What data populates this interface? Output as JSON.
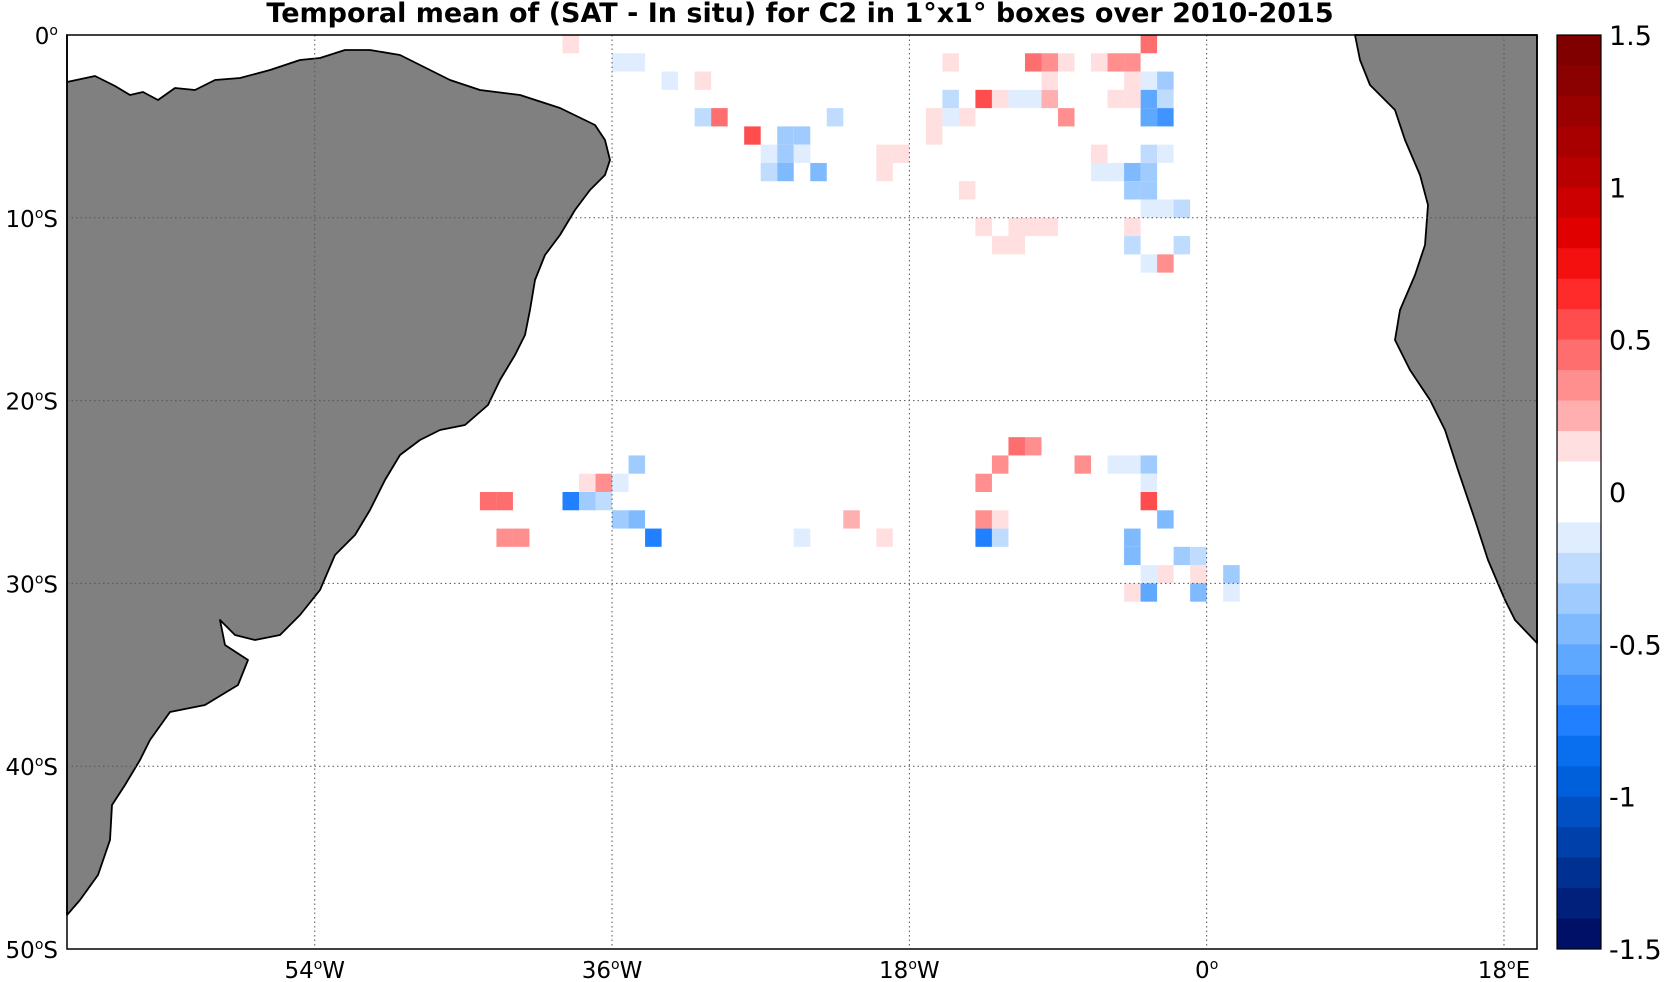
{
  "title": "Temporal mean of (SAT - In situ) for C2 in 1°x1° boxes over 2010-2015",
  "map": {
    "lon_range": [
      -69,
      20
    ],
    "lat_range": [
      -50,
      0
    ],
    "land_color": "#808080",
    "ocean_color": "#ffffff",
    "grid_style": "dotted",
    "lat_ticks": [
      {
        "value": 0,
        "num": "0",
        "suffix": ""
      },
      {
        "value": -10,
        "num": "10",
        "suffix": "S"
      },
      {
        "value": -20,
        "num": "20",
        "suffix": "S"
      },
      {
        "value": -30,
        "num": "30",
        "suffix": "S"
      },
      {
        "value": -40,
        "num": "40",
        "suffix": "S"
      },
      {
        "value": -50,
        "num": "50",
        "suffix": "S"
      }
    ],
    "lon_ticks": [
      {
        "value": -54,
        "num": "54",
        "suffix": "W"
      },
      {
        "value": -36,
        "num": "36",
        "suffix": "W"
      },
      {
        "value": -18,
        "num": "18",
        "suffix": "W"
      },
      {
        "value": 0,
        "num": "0",
        "suffix": ""
      },
      {
        "value": 18,
        "num": "18",
        "suffix": "E"
      }
    ],
    "degree_symbol": "o"
  },
  "colorbar": {
    "min": -1.5,
    "max": 1.5,
    "step": 0.1,
    "tick_labels": [
      "1.5",
      "1",
      "0.5",
      "0",
      "-0.5",
      "-1",
      "-1.5"
    ],
    "tick_values": [
      1.5,
      1,
      0.5,
      0,
      -0.5,
      -1,
      -1.5
    ],
    "colors_top_to_bottom": [
      "#800000",
      "#8b0000",
      "#990000",
      "#a80000",
      "#b80000",
      "#cc0000",
      "#e00000",
      "#f51010",
      "#ff2a2a",
      "#ff4d4d",
      "#ff6e6e",
      "#ff8f8f",
      "#ffafaf",
      "#ffdfdf",
      "#ffffff",
      "#ffffff",
      "#dfedff",
      "#bfdcff",
      "#9fcbff",
      "#7fbaff",
      "#5fa8ff",
      "#3f94ff",
      "#2080ff",
      "#0a6fef",
      "#0060dc",
      "#0050c4",
      "#0040aa",
      "#003092",
      "#00207c",
      "#001066"
    ]
  },
  "chart_data": {
    "type": "heatmap",
    "title": "Temporal mean of (SAT - In situ) for C2 in 1°x1° boxes over 2010-2015",
    "xlabel": "",
    "ylabel": "",
    "value_range": [
      -1.5,
      1.5
    ],
    "cell_size_deg": 1,
    "cells": [
      {
        "lon": -38.5,
        "lat": -0.5,
        "v": 0.1
      },
      {
        "lon": -35.5,
        "lat": -1.5,
        "v": -0.1
      },
      {
        "lon": -34.5,
        "lat": -1.5,
        "v": -0.1
      },
      {
        "lon": -32.5,
        "lat": -2.5,
        "v": -0.1
      },
      {
        "lon": -30.5,
        "lat": -2.5,
        "v": 0.15
      },
      {
        "lon": -30.5,
        "lat": -4.5,
        "v": -0.25
      },
      {
        "lon": -29.5,
        "lat": -4.5,
        "v": 0.5
      },
      {
        "lon": -27.5,
        "lat": -5.5,
        "v": 0.55
      },
      {
        "lon": -25.5,
        "lat": -5.5,
        "v": -0.3
      },
      {
        "lon": -24.5,
        "lat": -5.5,
        "v": -0.3
      },
      {
        "lon": -22.5,
        "lat": -4.5,
        "v": -0.2
      },
      {
        "lon": -26.5,
        "lat": -6.5,
        "v": -0.1
      },
      {
        "lon": -25.5,
        "lat": -6.5,
        "v": -0.35
      },
      {
        "lon": -24.5,
        "lat": -6.5,
        "v": -0.15
      },
      {
        "lon": -26.5,
        "lat": -7.5,
        "v": -0.25
      },
      {
        "lon": -25.5,
        "lat": -7.5,
        "v": -0.4
      },
      {
        "lon": -23.5,
        "lat": -7.5,
        "v": -0.45
      },
      {
        "lon": -19.5,
        "lat": -6.5,
        "v": 0.1
      },
      {
        "lon": -18.5,
        "lat": -6.5,
        "v": 0.1
      },
      {
        "lon": -19.5,
        "lat": -7.5,
        "v": 0.2
      },
      {
        "lon": -16.5,
        "lat": -5.5,
        "v": 0.1
      },
      {
        "lon": -15.5,
        "lat": -3.5,
        "v": -0.2
      },
      {
        "lon": -15.5,
        "lat": -4.5,
        "v": -0.1
      },
      {
        "lon": -16.5,
        "lat": -4.5,
        "v": 0.1
      },
      {
        "lon": -14.5,
        "lat": -4.5,
        "v": 0.1
      },
      {
        "lon": -15.5,
        "lat": -1.5,
        "v": 0.15
      },
      {
        "lon": -14.5,
        "lat": -8.5,
        "v": 0.2
      },
      {
        "lon": -13.5,
        "lat": -3.5,
        "v": 0.6
      },
      {
        "lon": -12.5,
        "lat": -3.5,
        "v": 0.1
      },
      {
        "lon": -11.5,
        "lat": -3.5,
        "v": -0.1
      },
      {
        "lon": -9.5,
        "lat": -1.5,
        "v": 0.3
      },
      {
        "lon": -10.5,
        "lat": -3.5,
        "v": -0.1
      },
      {
        "lon": -9.5,
        "lat": -3.5,
        "v": 0.25
      },
      {
        "lon": -9.5,
        "lat": -2.5,
        "v": 0.2
      },
      {
        "lon": -10.5,
        "lat": -1.5,
        "v": 0.5
      },
      {
        "lon": -8.5,
        "lat": -1.5,
        "v": 0.15
      },
      {
        "lon": -8.5,
        "lat": -4.5,
        "v": 0.3
      },
      {
        "lon": -6.5,
        "lat": -1.5,
        "v": 0.15
      },
      {
        "lon": -5.5,
        "lat": -1.5,
        "v": 0.4
      },
      {
        "lon": -4.5,
        "lat": -1.5,
        "v": 0.35
      },
      {
        "lon": -4.5,
        "lat": -2.5,
        "v": 0.1
      },
      {
        "lon": -3.5,
        "lat": -0.5,
        "v": 0.45
      },
      {
        "lon": -3.5,
        "lat": -2.5,
        "v": -0.1
      },
      {
        "lon": -2.5,
        "lat": -2.5,
        "v": -0.3
      },
      {
        "lon": -3.5,
        "lat": -3.5,
        "v": -0.5
      },
      {
        "lon": -2.5,
        "lat": -3.5,
        "v": -0.25
      },
      {
        "lon": -3.5,
        "lat": -4.5,
        "v": -0.55
      },
      {
        "lon": -2.5,
        "lat": -4.5,
        "v": -0.65
      },
      {
        "lon": -5.5,
        "lat": -3.5,
        "v": 0.15
      },
      {
        "lon": -4.5,
        "lat": -3.5,
        "v": 0.1
      },
      {
        "lon": -3.5,
        "lat": -6.5,
        "v": -0.2
      },
      {
        "lon": -2.5,
        "lat": -6.5,
        "v": -0.1
      },
      {
        "lon": -6.5,
        "lat": -6.5,
        "v": 0.1
      },
      {
        "lon": -6.5,
        "lat": -7.5,
        "v": -0.1
      },
      {
        "lon": -5.5,
        "lat": -7.5,
        "v": -0.1
      },
      {
        "lon": -4.5,
        "lat": -7.5,
        "v": -0.45
      },
      {
        "lon": -3.5,
        "lat": -7.5,
        "v": -0.3
      },
      {
        "lon": -4.5,
        "lat": -8.5,
        "v": -0.3
      },
      {
        "lon": -3.5,
        "lat": -8.5,
        "v": -0.3
      },
      {
        "lon": -3.5,
        "lat": -9.5,
        "v": -0.1
      },
      {
        "lon": -2.5,
        "lat": -9.5,
        "v": -0.1
      },
      {
        "lon": -1.5,
        "lat": -9.5,
        "v": -0.25
      },
      {
        "lon": -13.5,
        "lat": -10.5,
        "v": 0.15
      },
      {
        "lon": -11.5,
        "lat": -10.5,
        "v": 0.1
      },
      {
        "lon": -10.5,
        "lat": -10.5,
        "v": 0.15
      },
      {
        "lon": -9.5,
        "lat": -10.5,
        "v": 0.15
      },
      {
        "lon": -4.5,
        "lat": -10.5,
        "v": 0.2
      },
      {
        "lon": -12.5,
        "lat": -11.5,
        "v": 0.1
      },
      {
        "lon": -11.5,
        "lat": -11.5,
        "v": 0.15
      },
      {
        "lon": -4.5,
        "lat": -11.5,
        "v": -0.25
      },
      {
        "lon": -1.5,
        "lat": -11.5,
        "v": -0.2
      },
      {
        "lon": -3.5,
        "lat": -12.5,
        "v": -0.1
      },
      {
        "lon": -2.5,
        "lat": -12.5,
        "v": 0.35
      },
      {
        "lon": -11.5,
        "lat": -22.5,
        "v": 0.45
      },
      {
        "lon": -10.5,
        "lat": -22.5,
        "v": 0.3
      },
      {
        "lon": -12.5,
        "lat": -23.5,
        "v": 0.3
      },
      {
        "lon": -7.5,
        "lat": -23.5,
        "v": 0.3
      },
      {
        "lon": -4.5,
        "lat": -23.5,
        "v": -0.1
      },
      {
        "lon": -5.5,
        "lat": -23.5,
        "v": -0.15
      },
      {
        "lon": -3.5,
        "lat": -23.5,
        "v": -0.3
      },
      {
        "lon": -13.5,
        "lat": -24.5,
        "v": 0.35
      },
      {
        "lon": -3.5,
        "lat": -24.5,
        "v": -0.1
      },
      {
        "lon": -3.5,
        "lat": -25.5,
        "v": 0.6
      },
      {
        "lon": -2.5,
        "lat": -26.5,
        "v": -0.45
      },
      {
        "lon": -13.5,
        "lat": -26.5,
        "v": 0.35
      },
      {
        "lon": -12.5,
        "lat": -26.5,
        "v": 0.15
      },
      {
        "lon": -13.5,
        "lat": -27.5,
        "v": -0.7
      },
      {
        "lon": -12.5,
        "lat": -27.5,
        "v": -0.25
      },
      {
        "lon": -4.5,
        "lat": -27.5,
        "v": -0.45
      },
      {
        "lon": -4.5,
        "lat": -28.5,
        "v": -0.45
      },
      {
        "lon": -1.5,
        "lat": -28.5,
        "v": -0.3
      },
      {
        "lon": -0.5,
        "lat": -28.5,
        "v": -0.25
      },
      {
        "lon": -3.5,
        "lat": -29.5,
        "v": -0.1
      },
      {
        "lon": -2.5,
        "lat": -29.5,
        "v": 0.15
      },
      {
        "lon": -0.5,
        "lat": -29.5,
        "v": 0.2
      },
      {
        "lon": 1.5,
        "lat": -29.5,
        "v": -0.3
      },
      {
        "lon": -4.5,
        "lat": -30.5,
        "v": 0.2
      },
      {
        "lon": -3.5,
        "lat": -30.5,
        "v": -0.5
      },
      {
        "lon": -0.5,
        "lat": -30.5,
        "v": -0.4
      },
      {
        "lon": 1.5,
        "lat": -30.5,
        "v": -0.1
      },
      {
        "lon": -34.5,
        "lat": -23.5,
        "v": -0.35
      },
      {
        "lon": -37.5,
        "lat": -24.5,
        "v": 0.2
      },
      {
        "lon": -36.5,
        "lat": -24.5,
        "v": 0.3
      },
      {
        "lon": -35.5,
        "lat": -24.5,
        "v": -0.1
      },
      {
        "lon": -43.5,
        "lat": -25.5,
        "v": 0.45
      },
      {
        "lon": -42.5,
        "lat": -25.5,
        "v": 0.45
      },
      {
        "lon": -38.5,
        "lat": -25.5,
        "v": -0.7
      },
      {
        "lon": -37.5,
        "lat": -25.5,
        "v": -0.35
      },
      {
        "lon": -36.5,
        "lat": -25.5,
        "v": -0.2
      },
      {
        "lon": -35.5,
        "lat": -26.5,
        "v": -0.3
      },
      {
        "lon": -34.5,
        "lat": -26.5,
        "v": -0.4
      },
      {
        "lon": -42.5,
        "lat": -27.5,
        "v": 0.3
      },
      {
        "lon": -41.5,
        "lat": -27.5,
        "v": 0.3
      },
      {
        "lon": -33.5,
        "lat": -27.5,
        "v": -0.75
      },
      {
        "lon": -24.5,
        "lat": -27.5,
        "v": -0.1
      },
      {
        "lon": -21.5,
        "lat": -26.5,
        "v": 0.25
      },
      {
        "lon": -19.5,
        "lat": -27.5,
        "v": 0.2
      }
    ]
  }
}
